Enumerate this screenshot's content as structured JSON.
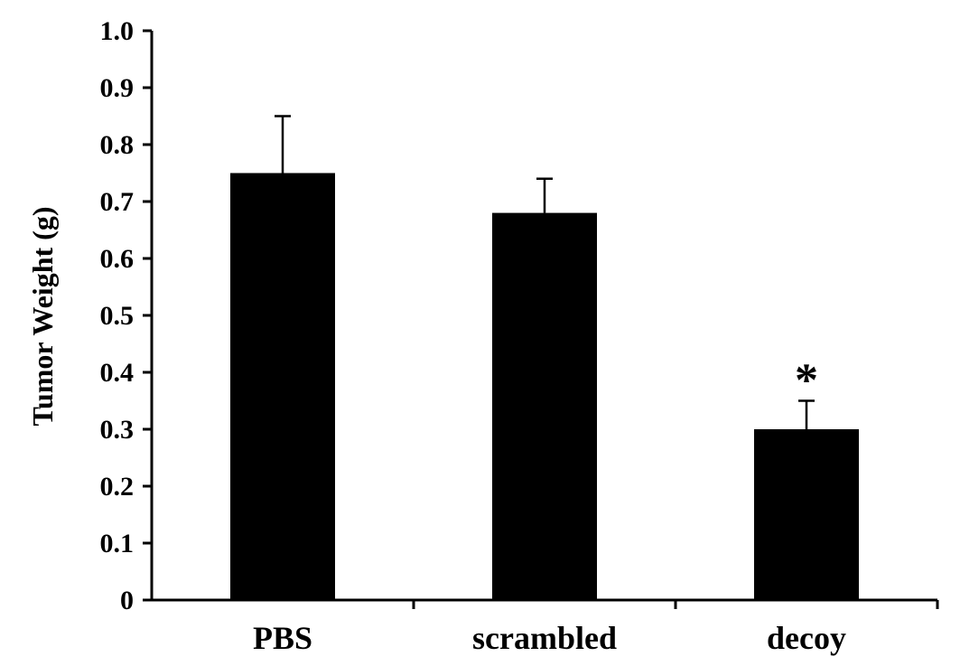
{
  "chart_data": {
    "type": "bar",
    "categories": [
      "PBS",
      "scrambled",
      "decoy"
    ],
    "values": [
      0.75,
      0.68,
      0.3
    ],
    "errors": [
      0.1,
      0.06,
      0.05
    ],
    "annotations": [
      "",
      "",
      "*"
    ],
    "ylabel": "Tumor Weight (g)",
    "xlabel": "",
    "ylim": [
      0,
      1.0
    ],
    "yticks": [
      "0",
      "0.1",
      "0.2",
      "0.3",
      "0.4",
      "0.5",
      "0.6",
      "0.7",
      "0.8",
      "0.9",
      "1.0"
    ],
    "grid": false,
    "legend": false,
    "bar_color": "#000000"
  }
}
